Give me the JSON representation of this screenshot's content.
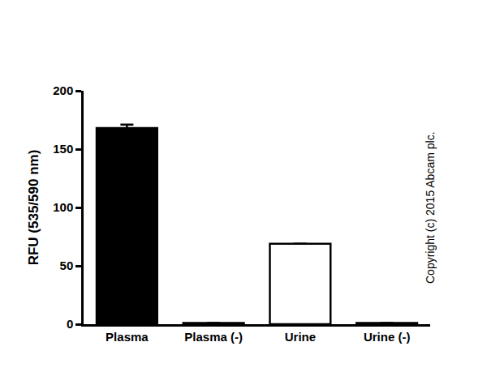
{
  "chart_data": {
    "type": "bar",
    "categories": [
      "Plasma",
      "Plasma (-)",
      "Urine",
      "Urine (-)"
    ],
    "values": [
      168,
      1,
      69,
      1
    ],
    "errors": [
      3,
      0,
      0,
      0
    ],
    "colors": [
      "#000000",
      "#000000",
      "#ffffff",
      "#ffffff"
    ],
    "y_label": "RFU (535/590 nm)",
    "annotations": [
      "Copyright (c) 2015 Abcam plc."
    ],
    "ylim": [
      0,
      200
    ],
    "yticks": [
      0,
      50,
      100,
      150,
      200
    ],
    "grid": false
  }
}
